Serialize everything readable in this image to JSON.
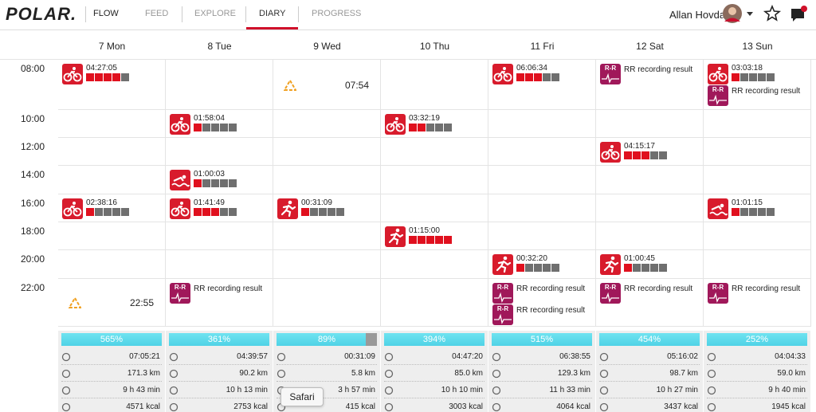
{
  "header": {
    "logo": "POLAR.",
    "app": "FLOW",
    "nav": [
      "FEED",
      "EXPLORE",
      "DIARY",
      "PROGRESS"
    ],
    "active_nav": "DIARY",
    "user": "Allan Hovda"
  },
  "diary": {
    "days": [
      "7 Mon",
      "8 Tue",
      "9 Wed",
      "10 Thu",
      "11 Fri",
      "12 Sat",
      "13 Sun"
    ],
    "rr_icon_label": "R-R",
    "rows": [
      {
        "time": "08:00",
        "cells": [
          [
            {
              "kind": "bike",
              "text": "04:27:05",
              "intensity": 4
            }
          ],
          [],
          [
            {
              "kind": "marker",
              "text": "07:54"
            }
          ],
          [],
          [
            {
              "kind": "bike",
              "text": "06:06:34",
              "intensity": 3
            }
          ],
          [
            {
              "kind": "rr",
              "text": "RR recording result"
            }
          ],
          [
            {
              "kind": "bike",
              "text": "03:03:18",
              "intensity": 1
            },
            {
              "kind": "rr",
              "text": "RR recording result"
            }
          ]
        ]
      },
      {
        "time": "10:00",
        "cells": [
          [],
          [
            {
              "kind": "bike",
              "text": "01:58:04",
              "intensity": 1
            }
          ],
          [],
          [
            {
              "kind": "bike",
              "text": "03:32:19",
              "intensity": 2
            }
          ],
          [],
          [],
          []
        ]
      },
      {
        "time": "12:00",
        "cells": [
          [],
          [],
          [],
          [],
          [],
          [
            {
              "kind": "bike",
              "text": "04:15:17",
              "intensity": 3
            }
          ],
          []
        ]
      },
      {
        "time": "14:00",
        "cells": [
          [],
          [
            {
              "kind": "swim",
              "text": "01:00:03",
              "intensity": 1
            }
          ],
          [],
          [],
          [],
          [],
          []
        ]
      },
      {
        "time": "16:00",
        "cells": [
          [
            {
              "kind": "bike",
              "text": "02:38:16",
              "intensity": 1
            }
          ],
          [
            {
              "kind": "bike",
              "text": "01:41:49",
              "intensity": 3
            }
          ],
          [
            {
              "kind": "run",
              "text": "00:31:09",
              "intensity": 1
            }
          ],
          [],
          [],
          [],
          [
            {
              "kind": "swim",
              "text": "01:01:15",
              "intensity": 1
            }
          ]
        ]
      },
      {
        "time": "18:00",
        "cells": [
          [],
          [],
          [],
          [
            {
              "kind": "run",
              "text": "01:15:00",
              "intensity": 5
            }
          ],
          [],
          [],
          []
        ]
      },
      {
        "time": "20:00",
        "cells": [
          [],
          [],
          [],
          [],
          [
            {
              "kind": "run",
              "text": "00:32:20",
              "intensity": 1
            }
          ],
          [
            {
              "kind": "run",
              "text": "01:00:45",
              "intensity": 1
            }
          ],
          []
        ]
      },
      {
        "time": "22:00",
        "cells": [
          [
            {
              "kind": "marker",
              "text": "22:55"
            }
          ],
          [
            {
              "kind": "rr",
              "text": "RR recording result"
            }
          ],
          [],
          [],
          [
            {
              "kind": "rr",
              "text": "RR recording result"
            },
            {
              "kind": "rr",
              "text": "RR recording result"
            }
          ],
          [
            {
              "kind": "rr",
              "text": "RR recording result"
            }
          ],
          [
            {
              "kind": "rr",
              "text": "RR recording result"
            }
          ]
        ]
      }
    ],
    "summary": [
      {
        "activity": 565,
        "activity_label": "565%",
        "duration": "07:05:21",
        "distance": "171.3 km",
        "sleep": "9 h 43 min",
        "calories": "4571 kcal"
      },
      {
        "activity": 361,
        "activity_label": "361%",
        "duration": "04:39:57",
        "distance": "90.2 km",
        "sleep": "10 h 13 min",
        "calories": "2753 kcal"
      },
      {
        "activity": 89,
        "activity_label": "89%",
        "duration": "00:31:09",
        "distance": "5.8 km",
        "sleep": "3 h 57 min",
        "calories": "415 kcal"
      },
      {
        "activity": 394,
        "activity_label": "394%",
        "duration": "04:47:20",
        "distance": "85.0 km",
        "sleep": "10 h 10 min",
        "calories": "3003 kcal"
      },
      {
        "activity": 515,
        "activity_label": "515%",
        "duration": "06:38:55",
        "distance": "129.3 km",
        "sleep": "11 h 33 min",
        "calories": "4064 kcal"
      },
      {
        "activity": 454,
        "activity_label": "454%",
        "duration": "05:16:02",
        "distance": "98.7 km",
        "sleep": "10 h 27 min",
        "calories": "3437 kcal"
      },
      {
        "activity": 252,
        "activity_label": "252%",
        "duration": "04:04:33",
        "distance": "59.0 km",
        "sleep": "9 h 40 min",
        "calories": "1945 kcal"
      }
    ]
  },
  "tooltip": "Safari"
}
